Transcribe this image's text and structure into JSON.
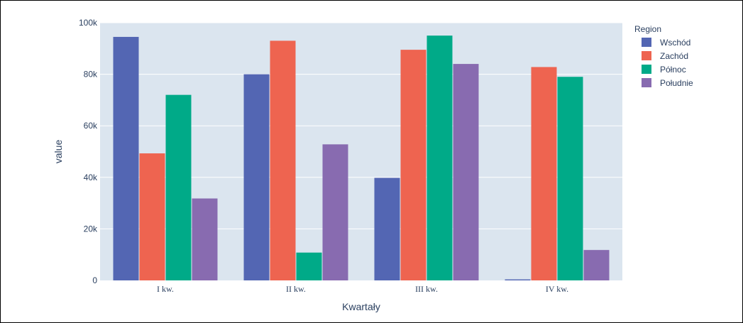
{
  "chart_data": {
    "type": "bar",
    "categories": [
      "I kw.",
      "II kw.",
      "III kw.",
      "IV kw."
    ],
    "series": [
      {
        "name": "Wschód",
        "color": "#5366b3",
        "values": [
          94500,
          80000,
          39800,
          400
        ]
      },
      {
        "name": "Zachód",
        "color": "#ee6450",
        "values": [
          49300,
          93000,
          89500,
          82800
        ]
      },
      {
        "name": "Północ",
        "color": "#00aa88",
        "values": [
          72000,
          10800,
          95000,
          79000
        ]
      },
      {
        "name": "Południe",
        "color": "#886bb0",
        "values": [
          31800,
          52800,
          84000,
          11800
        ]
      }
    ],
    "title": "",
    "xlabel": "Kwartały",
    "ylabel": "value",
    "ylim": [
      0,
      100000
    ],
    "yticks": [
      {
        "value": 0,
        "label": "0"
      },
      {
        "value": 20000,
        "label": "20k"
      },
      {
        "value": 40000,
        "label": "40k"
      },
      {
        "value": 60000,
        "label": "60k"
      },
      {
        "value": 80000,
        "label": "80k"
      },
      {
        "value": 100000,
        "label": "100k"
      }
    ],
    "legend_title": "Region",
    "legend_position": "top-right",
    "grid": true,
    "plot_background": "#dbe5ef"
  }
}
